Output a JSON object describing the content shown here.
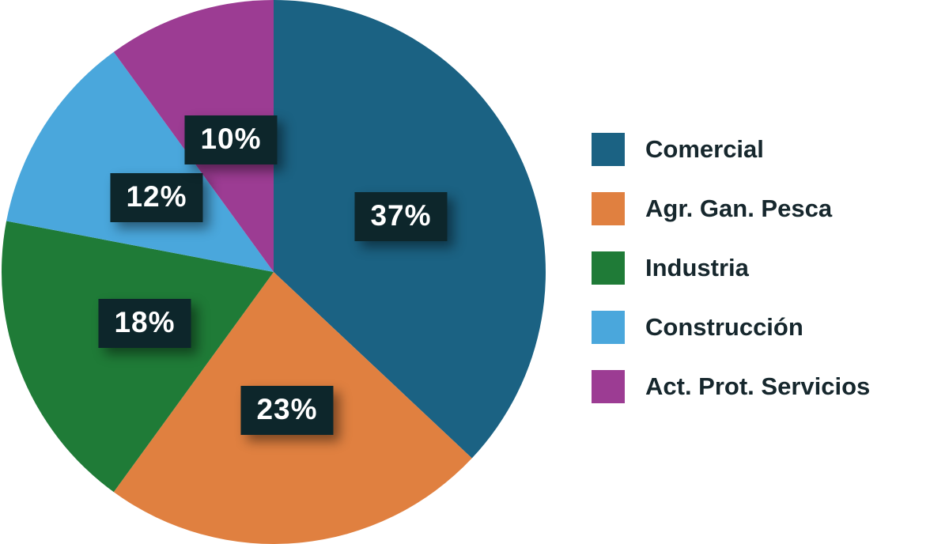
{
  "chart_data": {
    "type": "pie",
    "title": "",
    "labels": [
      "Comercial",
      "Agr. Gan. Pesca",
      "Industria",
      "Construcción",
      "Act. Prot. Servicios"
    ],
    "values": [
      37,
      23,
      18,
      12,
      10
    ],
    "value_labels": [
      "37%",
      "23%",
      "18%",
      "12%",
      "10%"
    ],
    "colors": [
      "#1b6283",
      "#e08040",
      "#1f7b37",
      "#4aa7dc",
      "#9c3c93"
    ],
    "start_angle_deg": 0,
    "direction": "clockwise",
    "legend_position": "right"
  },
  "styles": {
    "background": "#ffffff",
    "badge_bg": "#0d262b",
    "badge_text": "#ffffff",
    "legend_text": "#16272d"
  }
}
